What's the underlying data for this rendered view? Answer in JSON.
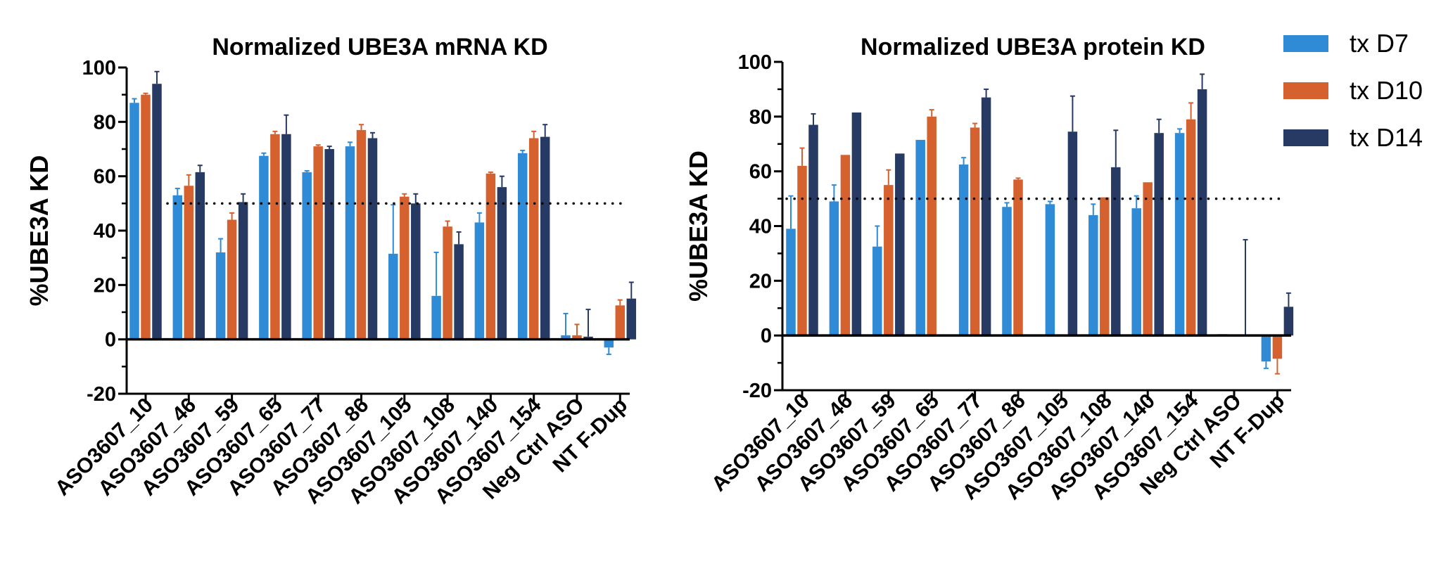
{
  "chart_data": [
    {
      "type": "bar",
      "title": "Normalized UBE3A mRNA KD",
      "ylabel": "%UBE3A KD",
      "xlabel": "",
      "ylim": [
        -20,
        100
      ],
      "yticks": [
        -20,
        0,
        20,
        40,
        60,
        80,
        100
      ],
      "reference_line": 50,
      "categories": [
        "ASO3607_10",
        "ASO3607_46",
        "ASO3607_59",
        "ASO3607_65",
        "ASO3607_77",
        "ASO3607_86",
        "ASO3607_105",
        "ASO3607_108",
        "ASO3607_140",
        "ASO3607_154",
        "Neg Ctrl ASO",
        "NT F-Dup"
      ],
      "series": [
        {
          "name": "tx D7",
          "color": "#2f8bd6",
          "values": [
            87,
            53,
            32,
            67.5,
            61.5,
            71,
            31.5,
            16,
            43,
            68.5,
            1.5,
            -3
          ],
          "errors": [
            1.5,
            2.5,
            5,
            1,
            0.5,
            1.5,
            18,
            16,
            3.5,
            1,
            8,
            2.5
          ]
        },
        {
          "name": "tx D10",
          "color": "#d5622e",
          "values": [
            90,
            56.5,
            44,
            75.5,
            71,
            77,
            52.5,
            41.5,
            61,
            74,
            1.5,
            12.5
          ],
          "errors": [
            0.5,
            4,
            2.5,
            1,
            0.5,
            2,
            1,
            2,
            0.5,
            2.5,
            4,
            2
          ]
        },
        {
          "name": "tx D14",
          "color": "#273a63",
          "values": [
            94,
            61.5,
            50.5,
            75.5,
            70,
            74,
            50,
            35,
            56,
            74.5,
            1,
            15
          ],
          "errors": [
            4.5,
            2.5,
            3,
            7,
            1,
            2,
            3.5,
            4.5,
            4,
            4.5,
            10,
            6
          ]
        }
      ]
    },
    {
      "type": "bar",
      "title": "Normalized UBE3A protein KD",
      "ylabel": "%UBE3A KD",
      "xlabel": "",
      "ylim": [
        -20,
        100
      ],
      "yticks": [
        -20,
        0,
        20,
        40,
        60,
        80,
        100
      ],
      "reference_line": 50,
      "categories": [
        "ASO3607_10",
        "ASO3607_46",
        "ASO3607_59",
        "ASO3607_65",
        "ASO3607_77",
        "ASO3607_86",
        "ASO3607_105",
        "ASO3607_108",
        "ASO3607_140",
        "ASO3607_154",
        "Neg Ctrl ASO",
        "NT F-Dup"
      ],
      "series": [
        {
          "name": "tx D7",
          "color": "#2f8bd6",
          "values": [
            39,
            49,
            32.5,
            71.5,
            62.5,
            47,
            48,
            44,
            46.5,
            74,
            0.5,
            -9.5
          ],
          "errors": [
            12,
            6,
            7.5,
            0,
            2.5,
            1.5,
            1,
            4,
            4.5,
            1.5,
            0,
            2.5
          ]
        },
        {
          "name": "tx D10",
          "color": "#d5622e",
          "values": [
            62,
            66,
            55,
            80,
            76,
            57,
            null,
            50.5,
            56,
            79,
            null,
            -8.5
          ],
          "errors": [
            6.5,
            0,
            5.5,
            2.5,
            1.5,
            0.5,
            0,
            0,
            0,
            6,
            0,
            5.5
          ]
        },
        {
          "name": "tx D14",
          "color": "#273a63",
          "values": [
            77,
            81.5,
            66.5,
            null,
            87,
            null,
            74.5,
            61.5,
            74,
            90,
            0,
            10.5
          ],
          "errors": [
            4,
            0,
            0,
            0,
            3,
            0,
            13,
            13.5,
            5,
            5.5,
            35,
            5
          ]
        }
      ]
    }
  ],
  "legend": {
    "placement": "top-right",
    "items": [
      {
        "label": "tx D7",
        "color": "#2f8bd6"
      },
      {
        "label": "tx D10",
        "color": "#d5622e"
      },
      {
        "label": "tx D14",
        "color": "#273a63"
      }
    ]
  }
}
